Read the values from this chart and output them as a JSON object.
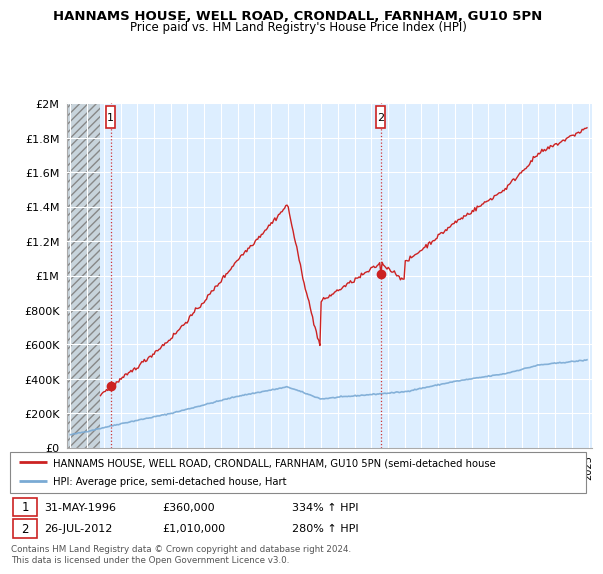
{
  "title": "HANNAMS HOUSE, WELL ROAD, CRONDALL, FARNHAM, GU10 5PN",
  "subtitle": "Price paid vs. HM Land Registry's House Price Index (HPI)",
  "hpi_color": "#7aaad4",
  "price_color": "#cc2222",
  "background_plot_color": "#ddeeff",
  "hatch_color": "#c0c8d0",
  "sale1_year": 1996.42,
  "sale1_price": 360000,
  "sale2_year": 2012.57,
  "sale2_price": 1010000,
  "legend_line1": "HANNAMS HOUSE, WELL ROAD, CRONDALL, FARNHAM, GU10 5PN (semi-detached house",
  "legend_line2": "HPI: Average price, semi-detached house, Hart",
  "note1_date": "31-MAY-1996",
  "note1_price": "£360,000",
  "note1_hpi": "334% ↑ HPI",
  "note2_date": "26-JUL-2012",
  "note2_price": "£1,010,000",
  "note2_hpi": "280% ↑ HPI",
  "footer": "Contains HM Land Registry data © Crown copyright and database right 2024.\nThis data is licensed under the Open Government Licence v3.0.",
  "ylim": [
    0,
    2000000
  ],
  "xlim_start": 1993.8,
  "xlim_end": 2025.2
}
